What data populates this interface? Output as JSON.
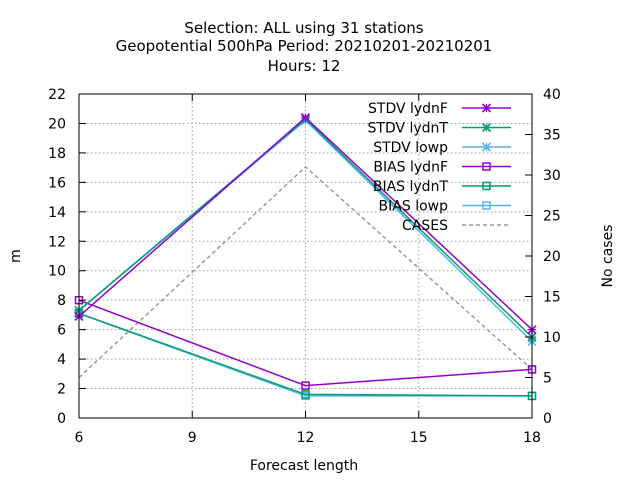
{
  "chart_data": {
    "type": "line",
    "title_lines": [
      "Selection: ALL using    31 stations",
      "Geopotential 500hPa   Period: 20210201-20210201",
      "Hours:  12"
    ],
    "xlabel": "Forecast length",
    "ylabel": "m",
    "y2label": "No cases",
    "x": [
      6,
      12,
      18
    ],
    "xlim": [
      6,
      18
    ],
    "ylim": [
      0,
      22
    ],
    "y2lim": [
      0,
      40
    ],
    "xticks": [
      6,
      9,
      12,
      15,
      18
    ],
    "yticks": [
      0,
      2,
      4,
      6,
      8,
      10,
      12,
      14,
      16,
      18,
      20,
      22
    ],
    "y2ticks": [
      0,
      5,
      10,
      15,
      20,
      25,
      30,
      35,
      40
    ],
    "grid": true,
    "legend_position": "top-right",
    "series": [
      {
        "name": "STDV lydnF",
        "values": [
          6.9,
          20.4,
          6.0
        ],
        "color": "#9400d3",
        "marker": "x",
        "axis": "y1"
      },
      {
        "name": "STDV lydnT",
        "values": [
          7.3,
          20.3,
          5.5
        ],
        "color": "#009e73",
        "marker": "x",
        "axis": "y1"
      },
      {
        "name": "STDV lowp",
        "values": [
          7.3,
          20.2,
          5.2
        ],
        "color": "#56b4e9",
        "marker": "x",
        "axis": "y1"
      },
      {
        "name": "BIAS lydnF",
        "values": [
          8.0,
          2.2,
          3.3
        ],
        "color": "#9400d3",
        "marker": "square",
        "axis": "y1"
      },
      {
        "name": "BIAS lydnT",
        "values": [
          7.1,
          1.6,
          1.5
        ],
        "color": "#009e73",
        "marker": "square",
        "axis": "y1"
      },
      {
        "name": "BIAS lowp",
        "values": [
          7.1,
          1.5,
          1.5
        ],
        "color": "#56b4e9",
        "marker": "square",
        "axis": "y1"
      },
      {
        "name": "CASES",
        "values": [
          5,
          31,
          6
        ],
        "color": "#999999",
        "marker": "none",
        "dashed": true,
        "axis": "y2"
      }
    ]
  }
}
